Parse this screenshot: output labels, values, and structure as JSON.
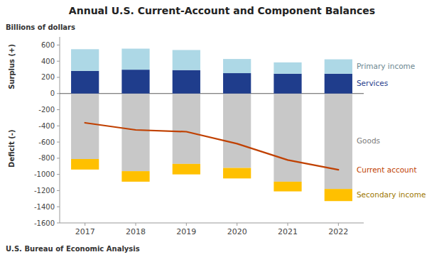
{
  "chart_data": {
    "type": "bar",
    "stacked": true,
    "grid": false,
    "title": "Annual U.S. Current-Account and Component Balances",
    "y_label": "Billions of dollars",
    "annotations": [
      "Surplus (+)",
      "Deficit (-)"
    ],
    "source": "U.S. Bureau of Economic Analysis",
    "categories": [
      "2017",
      "2018",
      "2019",
      "2020",
      "2021",
      "2022"
    ],
    "series": [
      {
        "name": "Goods",
        "color": "#C8C8C8",
        "values": [
          -810,
          -960,
          -870,
          -920,
          -1090,
          -1180
        ]
      },
      {
        "name": "Secondary income",
        "color": "#FFC000",
        "values": [
          -130,
          -130,
          -130,
          -130,
          -120,
          -150
        ]
      },
      {
        "name": "Services",
        "color": "#1F3D8C",
        "values": [
          280,
          295,
          290,
          252,
          245,
          245
        ]
      },
      {
        "name": "Primary income",
        "color": "#ADD8E6",
        "values": [
          268,
          260,
          248,
          175,
          140,
          178
        ]
      },
      {
        "name": "Current account",
        "color": "#C04000",
        "type": "line",
        "values": [
          -362,
          -450,
          -472,
          -620,
          -822,
          -943
        ]
      }
    ],
    "ylim": [
      -1600,
      700
    ],
    "yticks": [
      600,
      400,
      200,
      0,
      -200,
      -400,
      -600,
      -800,
      -1000,
      -1200,
      -1400,
      -1600
    ]
  }
}
